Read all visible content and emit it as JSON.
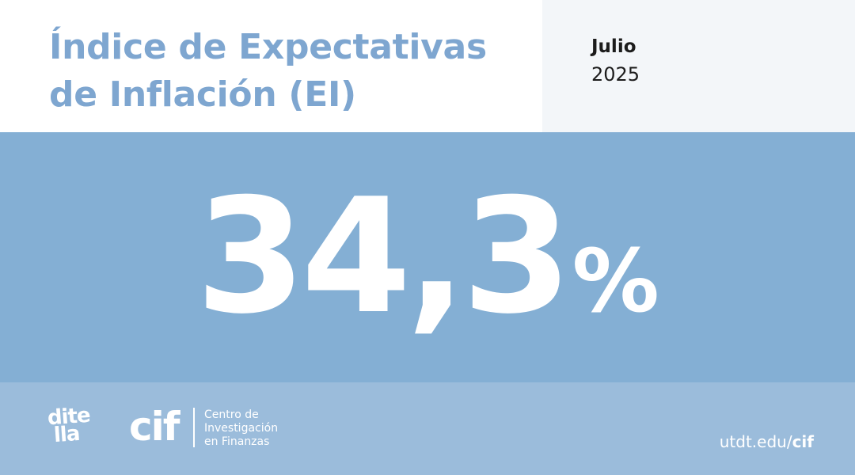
{
  "header": {
    "title_line1": "Índice de Expectativas",
    "title_line2": "de Inflación (EI)",
    "month": "Julio",
    "year": "2025"
  },
  "main": {
    "value": "34,3",
    "unit": "%"
  },
  "footer": {
    "ditella_line1": "dite",
    "ditella_line2": "lla",
    "cif_mark": "cif",
    "cif_name_line1": "Centro de",
    "cif_name_line2": "Investigación",
    "cif_name_line3": "en Finanzas",
    "url_prefix": "utdt.edu/",
    "url_suffix": "cif"
  },
  "colors": {
    "title": "#7ea6d0",
    "band": "#84afd4",
    "footer": "#9bbcdb",
    "date_box": "#f3f6f9"
  }
}
